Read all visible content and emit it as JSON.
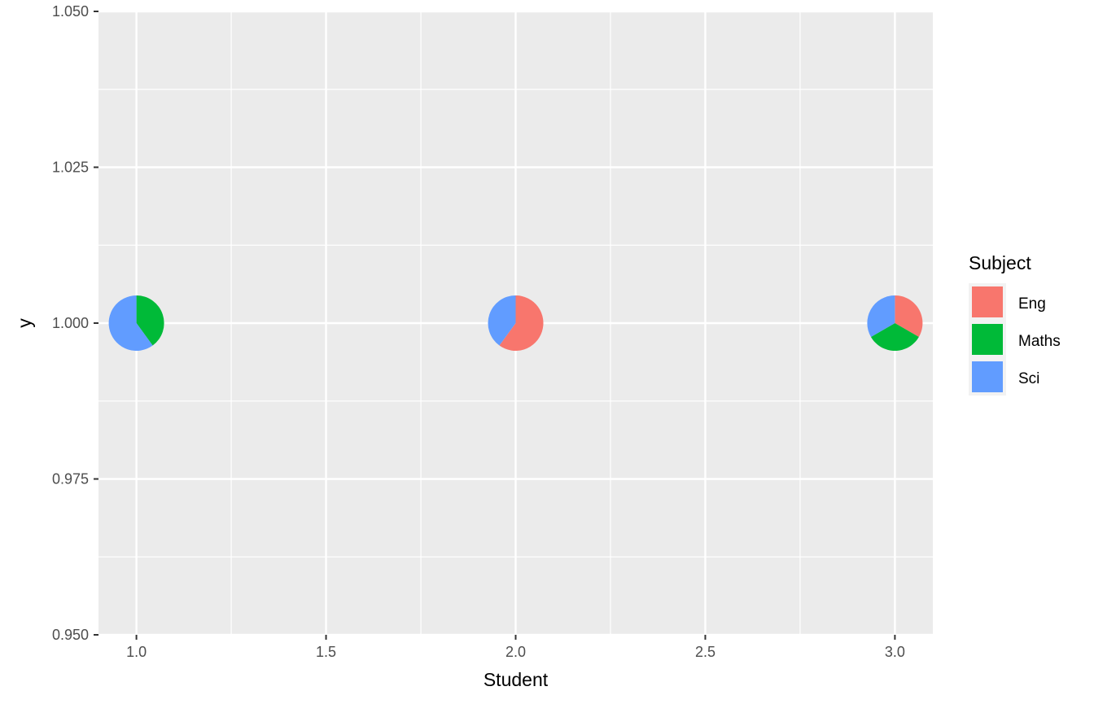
{
  "chart_data": {
    "type": "scatter",
    "subtype": "scatter-pie",
    "xlabel": "Student",
    "ylabel": "y",
    "xlim": [
      0.9,
      3.1
    ],
    "ylim": [
      0.95,
      1.05
    ],
    "x_ticks": [
      1.0,
      1.5,
      2.0,
      2.5,
      3.0
    ],
    "x_tick_labels": [
      "1.0",
      "1.5",
      "2.0",
      "2.5",
      "3.0"
    ],
    "y_ticks": [
      0.95,
      0.975,
      1.0,
      1.025,
      1.05
    ],
    "y_tick_labels": [
      "0.950",
      "0.975",
      "1.000",
      "1.025",
      "1.050"
    ],
    "grid": true,
    "legend": {
      "title": "Subject",
      "position": "right",
      "entries": [
        "Eng",
        "Maths",
        "Sci"
      ]
    },
    "colors": {
      "Eng": "#F8766D",
      "Maths": "#00BA38",
      "Sci": "#619CFF",
      "panel": "#EBEBEB",
      "grid": "#FFFFFF"
    },
    "series": [
      {
        "name": "Eng"
      },
      {
        "name": "Maths"
      },
      {
        "name": "Sci"
      }
    ],
    "points": [
      {
        "x": 1,
        "y": 1,
        "slices": {
          "Eng": 0,
          "Maths": 0.4,
          "Sci": 0.6
        }
      },
      {
        "x": 2,
        "y": 1,
        "slices": {
          "Eng": 0.6,
          "Maths": 0,
          "Sci": 0.4
        }
      },
      {
        "x": 3,
        "y": 1,
        "slices": {
          "Eng": 0.3333,
          "Maths": 0.3333,
          "Sci": 0.3334
        }
      }
    ]
  }
}
